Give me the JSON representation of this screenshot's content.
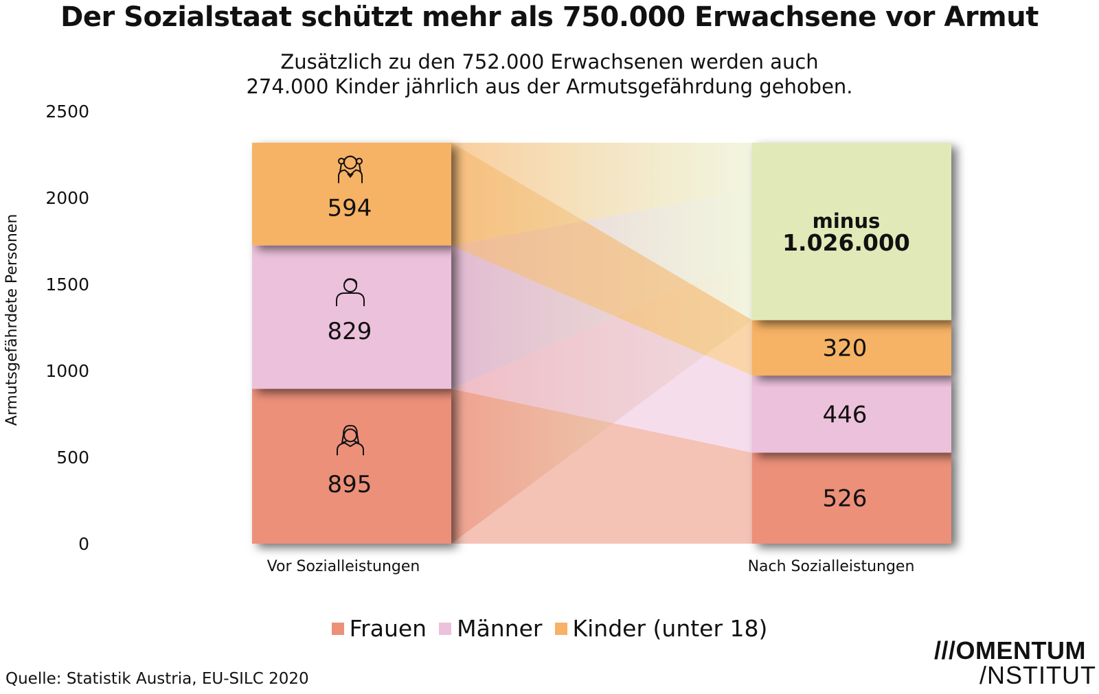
{
  "title": "Der Sozialstaat schützt mehr als 750.000 Erwachsene vor Armut",
  "subtitle": {
    "line1": "Zusätzlich zu den 752.000 Erwachsenen werden auch",
    "line2": "274.000 Kinder jährlich aus der Armutsgefährdung gehoben."
  },
  "chart_data": {
    "type": "bar",
    "title": "Der Sozialstaat schützt mehr als 750.000 Erwachsene vor Armut",
    "ylabel": "Armutsgefährdete Personen",
    "xlabel": "",
    "ylim": [
      0,
      2500
    ],
    "yticks": [
      0,
      500,
      1000,
      1500,
      2000,
      2500
    ],
    "categories": [
      "Vor Sozialleistungen",
      "Nach Sozialleistungen"
    ],
    "stacked": true,
    "series": [
      {
        "name": "Frauen",
        "values": [
          895,
          526
        ],
        "color": "#ec907a"
      },
      {
        "name": "Männer",
        "values": [
          829,
          446
        ],
        "color": "#ecc1dc"
      },
      {
        "name": "Kinder (unter 18)",
        "values": [
          594,
          320
        ],
        "color": "#f6b265"
      }
    ],
    "reduction": {
      "label_line1": "minus",
      "label_line2": "1.026.000",
      "value": 1026,
      "color": "#e1e9b8"
    },
    "icons": [
      "child-girl-icon",
      "man-icon",
      "woman-icon"
    ]
  },
  "legend": [
    "Frauen",
    "Männer",
    "Kinder (unter 18)"
  ],
  "source": "Quelle: Statistik Austria, EU-SILC 2020",
  "logo": {
    "line1": "///OMENTUM",
    "line2": "/NSTITUT"
  }
}
